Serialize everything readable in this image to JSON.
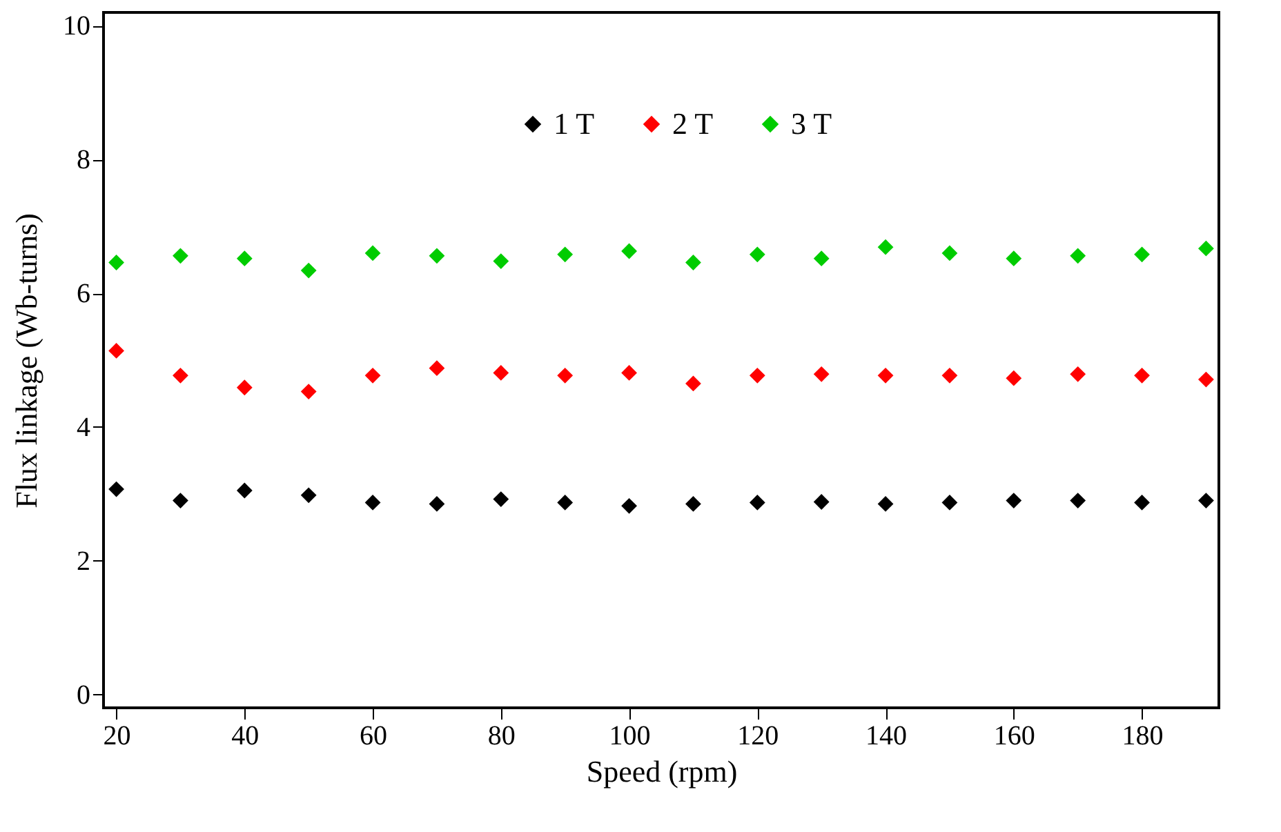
{
  "chart_data": {
    "type": "scatter",
    "xlabel": "Speed (rpm)",
    "ylabel": "Flux linkage (Wb-turns)",
    "x": [
      20,
      30,
      40,
      50,
      60,
      70,
      80,
      90,
      100,
      110,
      120,
      130,
      140,
      150,
      160,
      170,
      180,
      190
    ],
    "series": [
      {
        "name": "1 T",
        "color": "#000000",
        "values": [
          3.07,
          2.9,
          3.05,
          2.98,
          2.87,
          2.85,
          2.92,
          2.87,
          2.82,
          2.85,
          2.87,
          2.88,
          2.85,
          2.87,
          2.9,
          2.9,
          2.87,
          2.9
        ]
      },
      {
        "name": "2 T",
        "color": "#ff0000",
        "values": [
          5.14,
          4.77,
          4.59,
          4.53,
          4.77,
          4.88,
          4.81,
          4.77,
          4.81,
          4.65,
          4.77,
          4.79,
          4.77,
          4.77,
          4.73,
          4.79,
          4.77,
          4.71
        ]
      },
      {
        "name": "3 T",
        "color": "#00cc00",
        "values": [
          6.46,
          6.56,
          6.52,
          6.34,
          6.6,
          6.56,
          6.48,
          6.58,
          6.63,
          6.46,
          6.58,
          6.52,
          6.69,
          6.6,
          6.52,
          6.56,
          6.58,
          6.67
        ]
      }
    ],
    "xlim": [
      18,
      192
    ],
    "xticks": [
      20,
      40,
      60,
      80,
      100,
      120,
      140,
      160,
      180
    ],
    "ylim": [
      -0.2,
      10.2
    ],
    "yticks": [
      0,
      2,
      4,
      6,
      8,
      10
    ],
    "marker": "diamond",
    "legend": "top",
    "grid": false
  }
}
